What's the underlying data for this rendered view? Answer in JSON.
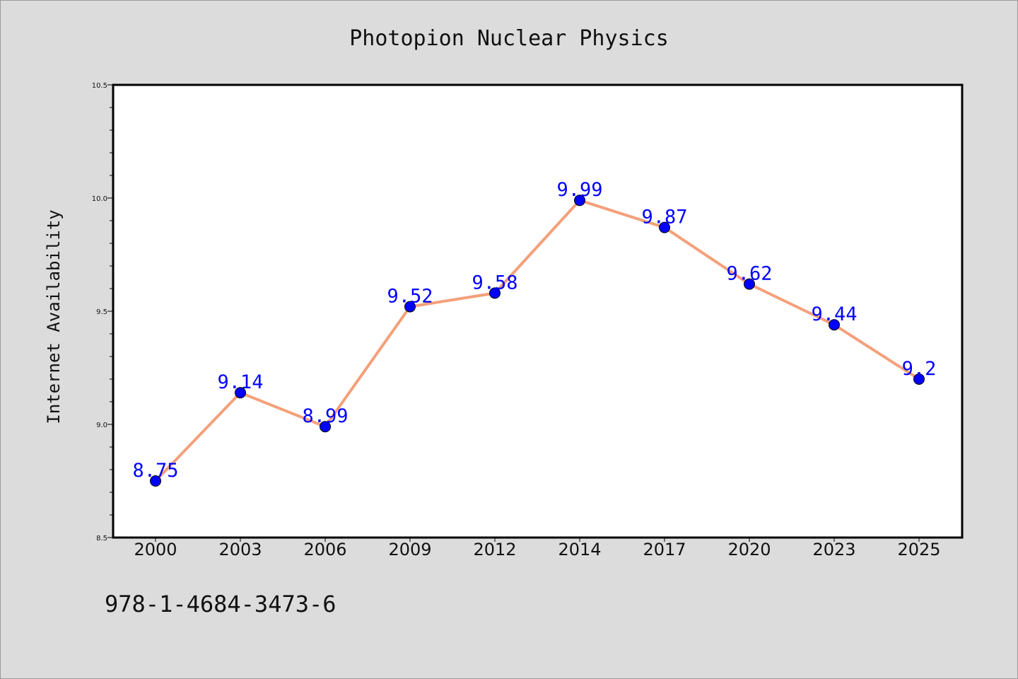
{
  "chart_data": {
    "type": "line",
    "title": "Photopion Nuclear Physics",
    "xlabel": "",
    "ylabel": "Internet Availability",
    "categories": [
      "2000",
      "2003",
      "2006",
      "2009",
      "2012",
      "2014",
      "2017",
      "2020",
      "2023",
      "2025"
    ],
    "series": [
      {
        "values": [
          8.75,
          9.14,
          8.99,
          9.52,
          9.58,
          9.99,
          9.87,
          9.62,
          9.44,
          9.2
        ],
        "labels": [
          "8.75",
          "9.14",
          "8.99",
          "9.52",
          "9.58",
          "9.99",
          "9.87",
          "9.62",
          "9.44",
          "9.2"
        ],
        "line_color": "#f4a07a",
        "marker_color": "#0000ff"
      }
    ],
    "ylim": [
      8.5,
      10.5
    ],
    "yticks": [
      "8.5",
      "9.0",
      "9.5",
      "10.0",
      "10.5"
    ],
    "grid": false,
    "legend": "none"
  },
  "footer": {
    "isbn": "978-1-4684-3473-6"
  },
  "colors": {
    "background": "#dcdcdc",
    "plot_background": "#ffffff"
  }
}
